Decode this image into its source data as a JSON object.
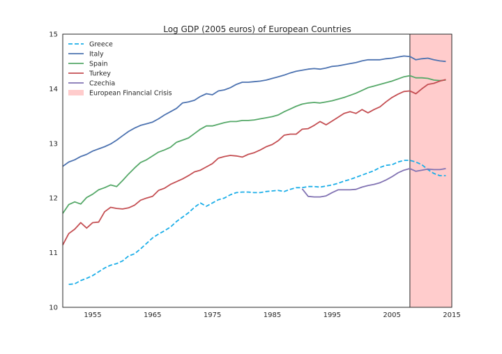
{
  "chart_data": {
    "type": "line",
    "title": "Log GDP (2005 euros) of European Countries",
    "xlabel": "",
    "ylabel": "",
    "xlim": [
      1950,
      2015
    ],
    "ylim": [
      10,
      15
    ],
    "xticks": [
      1955,
      1965,
      1975,
      1985,
      1995,
      2005,
      2015
    ],
    "yticks": [
      10,
      11,
      12,
      13,
      14,
      15
    ],
    "grid": false,
    "legend_position": "top-left",
    "shaded_region": {
      "name": "European Financial Crisis",
      "x_start": 2008,
      "x_end": 2015,
      "color": "#ffcccc"
    },
    "series": [
      {
        "name": "Greece",
        "color": "#1baee8",
        "style": "dashed",
        "points": [
          [
            1951,
            10.42
          ],
          [
            1952,
            10.43
          ],
          [
            1953,
            10.49
          ],
          [
            1954,
            10.53
          ],
          [
            1955,
            10.58
          ],
          [
            1956,
            10.65
          ],
          [
            1957,
            10.72
          ],
          [
            1958,
            10.77
          ],
          [
            1959,
            10.8
          ],
          [
            1960,
            10.85
          ],
          [
            1961,
            10.94
          ],
          [
            1962,
            10.98
          ],
          [
            1963,
            11.07
          ],
          [
            1964,
            11.17
          ],
          [
            1965,
            11.27
          ],
          [
            1966,
            11.34
          ],
          [
            1967,
            11.4
          ],
          [
            1968,
            11.47
          ],
          [
            1969,
            11.57
          ],
          [
            1970,
            11.65
          ],
          [
            1971,
            11.73
          ],
          [
            1972,
            11.83
          ],
          [
            1973,
            11.91
          ],
          [
            1974,
            11.85
          ],
          [
            1975,
            11.91
          ],
          [
            1976,
            11.97
          ],
          [
            1977,
            12.0
          ],
          [
            1978,
            12.06
          ],
          [
            1979,
            12.1
          ],
          [
            1980,
            12.11
          ],
          [
            1981,
            12.11
          ],
          [
            1982,
            12.1
          ],
          [
            1983,
            12.1
          ],
          [
            1984,
            12.12
          ],
          [
            1985,
            12.13
          ],
          [
            1986,
            12.14
          ],
          [
            1987,
            12.12
          ],
          [
            1988,
            12.16
          ],
          [
            1989,
            12.19
          ],
          [
            1990,
            12.19
          ],
          [
            1991,
            12.21
          ],
          [
            1992,
            12.21
          ],
          [
            1993,
            12.2
          ],
          [
            1994,
            12.22
          ],
          [
            1995,
            12.24
          ],
          [
            1996,
            12.27
          ],
          [
            1997,
            12.31
          ],
          [
            1998,
            12.34
          ],
          [
            1999,
            12.38
          ],
          [
            2000,
            12.42
          ],
          [
            2001,
            12.46
          ],
          [
            2002,
            12.5
          ],
          [
            2003,
            12.56
          ],
          [
            2004,
            12.6
          ],
          [
            2005,
            12.61
          ],
          [
            2006,
            12.66
          ],
          [
            2007,
            12.69
          ],
          [
            2008,
            12.69
          ],
          [
            2009,
            12.66
          ],
          [
            2010,
            12.61
          ],
          [
            2011,
            12.52
          ],
          [
            2012,
            12.45
          ],
          [
            2013,
            12.41
          ],
          [
            2014,
            12.41
          ]
        ]
      },
      {
        "name": "Italy",
        "color": "#4c72b0",
        "style": "solid",
        "points": [
          [
            1950,
            12.58
          ],
          [
            1951,
            12.66
          ],
          [
            1952,
            12.7
          ],
          [
            1953,
            12.76
          ],
          [
            1954,
            12.8
          ],
          [
            1955,
            12.86
          ],
          [
            1956,
            12.9
          ],
          [
            1957,
            12.94
          ],
          [
            1958,
            12.99
          ],
          [
            1959,
            13.06
          ],
          [
            1960,
            13.14
          ],
          [
            1961,
            13.22
          ],
          [
            1962,
            13.28
          ],
          [
            1963,
            13.33
          ],
          [
            1964,
            13.36
          ],
          [
            1965,
            13.39
          ],
          [
            1966,
            13.45
          ],
          [
            1967,
            13.52
          ],
          [
            1968,
            13.58
          ],
          [
            1969,
            13.64
          ],
          [
            1970,
            13.74
          ],
          [
            1971,
            13.76
          ],
          [
            1972,
            13.79
          ],
          [
            1973,
            13.86
          ],
          [
            1974,
            13.91
          ],
          [
            1975,
            13.89
          ],
          [
            1976,
            13.96
          ],
          [
            1977,
            13.98
          ],
          [
            1978,
            14.02
          ],
          [
            1979,
            14.08
          ],
          [
            1980,
            14.12
          ],
          [
            1981,
            14.12
          ],
          [
            1982,
            14.13
          ],
          [
            1983,
            14.14
          ],
          [
            1984,
            14.16
          ],
          [
            1985,
            14.19
          ],
          [
            1986,
            14.22
          ],
          [
            1987,
            14.25
          ],
          [
            1988,
            14.29
          ],
          [
            1989,
            14.32
          ],
          [
            1990,
            14.34
          ],
          [
            1991,
            14.36
          ],
          [
            1992,
            14.37
          ],
          [
            1993,
            14.36
          ],
          [
            1994,
            14.38
          ],
          [
            1995,
            14.41
          ],
          [
            1996,
            14.42
          ],
          [
            1997,
            14.44
          ],
          [
            1998,
            14.46
          ],
          [
            1999,
            14.48
          ],
          [
            2000,
            14.51
          ],
          [
            2001,
            14.53
          ],
          [
            2002,
            14.53
          ],
          [
            2003,
            14.53
          ],
          [
            2004,
            14.55
          ],
          [
            2005,
            14.56
          ],
          [
            2006,
            14.58
          ],
          [
            2007,
            14.6
          ],
          [
            2008,
            14.59
          ],
          [
            2009,
            14.53
          ],
          [
            2010,
            14.55
          ],
          [
            2011,
            14.56
          ],
          [
            2012,
            14.53
          ],
          [
            2013,
            14.51
          ],
          [
            2014,
            14.5
          ]
        ]
      },
      {
        "name": "Spain",
        "color": "#55a868",
        "style": "solid",
        "points": [
          [
            1950,
            11.72
          ],
          [
            1951,
            11.88
          ],
          [
            1952,
            11.93
          ],
          [
            1953,
            11.89
          ],
          [
            1954,
            12.01
          ],
          [
            1955,
            12.07
          ],
          [
            1956,
            12.15
          ],
          [
            1957,
            12.19
          ],
          [
            1958,
            12.24
          ],
          [
            1959,
            12.21
          ],
          [
            1960,
            12.32
          ],
          [
            1961,
            12.44
          ],
          [
            1962,
            12.55
          ],
          [
            1963,
            12.65
          ],
          [
            1964,
            12.7
          ],
          [
            1965,
            12.77
          ],
          [
            1966,
            12.84
          ],
          [
            1967,
            12.88
          ],
          [
            1968,
            12.93
          ],
          [
            1969,
            13.02
          ],
          [
            1970,
            13.06
          ],
          [
            1971,
            13.1
          ],
          [
            1972,
            13.18
          ],
          [
            1973,
            13.26
          ],
          [
            1974,
            13.32
          ],
          [
            1975,
            13.32
          ],
          [
            1976,
            13.35
          ],
          [
            1977,
            13.38
          ],
          [
            1978,
            13.4
          ],
          [
            1979,
            13.4
          ],
          [
            1980,
            13.42
          ],
          [
            1981,
            13.42
          ],
          [
            1982,
            13.43
          ],
          [
            1983,
            13.45
          ],
          [
            1984,
            13.47
          ],
          [
            1985,
            13.49
          ],
          [
            1986,
            13.52
          ],
          [
            1987,
            13.58
          ],
          [
            1988,
            13.63
          ],
          [
            1989,
            13.68
          ],
          [
            1990,
            13.72
          ],
          [
            1991,
            13.74
          ],
          [
            1992,
            13.75
          ],
          [
            1993,
            13.74
          ],
          [
            1994,
            13.76
          ],
          [
            1995,
            13.78
          ],
          [
            1996,
            13.81
          ],
          [
            1997,
            13.84
          ],
          [
            1998,
            13.88
          ],
          [
            1999,
            13.92
          ],
          [
            2000,
            13.97
          ],
          [
            2001,
            14.02
          ],
          [
            2002,
            14.05
          ],
          [
            2003,
            14.08
          ],
          [
            2004,
            14.11
          ],
          [
            2005,
            14.14
          ],
          [
            2006,
            14.18
          ],
          [
            2007,
            14.22
          ],
          [
            2008,
            14.24
          ],
          [
            2009,
            14.2
          ],
          [
            2010,
            14.2
          ],
          [
            2011,
            14.19
          ],
          [
            2012,
            14.16
          ],
          [
            2013,
            14.15
          ],
          [
            2014,
            14.16
          ]
        ]
      },
      {
        "name": "Turkey",
        "color": "#c44e52",
        "style": "solid",
        "points": [
          [
            1950,
            11.14
          ],
          [
            1951,
            11.35
          ],
          [
            1952,
            11.43
          ],
          [
            1953,
            11.55
          ],
          [
            1954,
            11.45
          ],
          [
            1955,
            11.55
          ],
          [
            1956,
            11.56
          ],
          [
            1957,
            11.75
          ],
          [
            1958,
            11.83
          ],
          [
            1959,
            11.81
          ],
          [
            1960,
            11.8
          ],
          [
            1961,
            11.82
          ],
          [
            1962,
            11.87
          ],
          [
            1963,
            11.96
          ],
          [
            1964,
            12.0
          ],
          [
            1965,
            12.03
          ],
          [
            1966,
            12.14
          ],
          [
            1967,
            12.18
          ],
          [
            1968,
            12.25
          ],
          [
            1969,
            12.3
          ],
          [
            1970,
            12.35
          ],
          [
            1971,
            12.41
          ],
          [
            1972,
            12.48
          ],
          [
            1973,
            12.51
          ],
          [
            1974,
            12.57
          ],
          [
            1975,
            12.63
          ],
          [
            1976,
            12.73
          ],
          [
            1977,
            12.76
          ],
          [
            1978,
            12.78
          ],
          [
            1979,
            12.77
          ],
          [
            1980,
            12.75
          ],
          [
            1981,
            12.8
          ],
          [
            1982,
            12.83
          ],
          [
            1983,
            12.88
          ],
          [
            1984,
            12.94
          ],
          [
            1985,
            12.98
          ],
          [
            1986,
            13.05
          ],
          [
            1987,
            13.15
          ],
          [
            1988,
            13.17
          ],
          [
            1989,
            13.17
          ],
          [
            1990,
            13.26
          ],
          [
            1991,
            13.27
          ],
          [
            1992,
            13.33
          ],
          [
            1993,
            13.4
          ],
          [
            1994,
            13.34
          ],
          [
            1995,
            13.41
          ],
          [
            1996,
            13.48
          ],
          [
            1997,
            13.55
          ],
          [
            1998,
            13.58
          ],
          [
            1999,
            13.55
          ],
          [
            2000,
            13.62
          ],
          [
            2001,
            13.56
          ],
          [
            2002,
            13.62
          ],
          [
            2003,
            13.67
          ],
          [
            2004,
            13.76
          ],
          [
            2005,
            13.84
          ],
          [
            2006,
            13.9
          ],
          [
            2007,
            13.95
          ],
          [
            2008,
            13.96
          ],
          [
            2009,
            13.91
          ],
          [
            2010,
            14.0
          ],
          [
            2011,
            14.08
          ],
          [
            2012,
            14.1
          ],
          [
            2013,
            14.14
          ],
          [
            2014,
            14.17
          ]
        ]
      },
      {
        "name": "Czechia",
        "color": "#8172b2",
        "style": "solid",
        "points": [
          [
            1990,
            12.17
          ],
          [
            1991,
            12.03
          ],
          [
            1992,
            12.02
          ],
          [
            1993,
            12.02
          ],
          [
            1994,
            12.04
          ],
          [
            1995,
            12.1
          ],
          [
            1996,
            12.15
          ],
          [
            1997,
            12.15
          ],
          [
            1998,
            12.15
          ],
          [
            1999,
            12.16
          ],
          [
            2000,
            12.2
          ],
          [
            2001,
            12.23
          ],
          [
            2002,
            12.25
          ],
          [
            2003,
            12.28
          ],
          [
            2004,
            12.33
          ],
          [
            2005,
            12.39
          ],
          [
            2006,
            12.46
          ],
          [
            2007,
            12.51
          ],
          [
            2008,
            12.54
          ],
          [
            2009,
            12.49
          ],
          [
            2010,
            12.51
          ],
          [
            2011,
            12.53
          ],
          [
            2012,
            12.52
          ],
          [
            2013,
            12.52
          ],
          [
            2014,
            12.54
          ]
        ]
      }
    ]
  }
}
